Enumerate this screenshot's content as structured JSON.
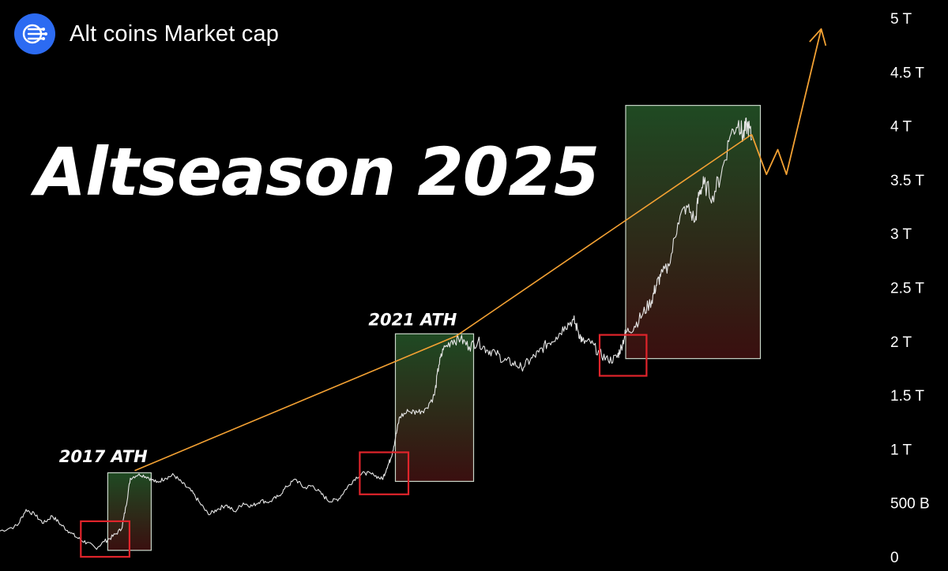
{
  "header": {
    "title": "Alt coins Market cap",
    "logo_icon": "circuit-logo-icon",
    "logo_color": "#2c6bf2"
  },
  "headline": "Altseason 2025",
  "chart_data": {
    "type": "line",
    "title": "Alt coins Market cap",
    "xlabel": "",
    "ylabel": "",
    "ylim": [
      0,
      5000
    ],
    "y_unit": "B",
    "y_ticks": [
      {
        "value": 0,
        "label": "0"
      },
      {
        "value": 500,
        "label": "500 B"
      },
      {
        "value": 1000,
        "label": "1 T"
      },
      {
        "value": 1500,
        "label": "1.5 T"
      },
      {
        "value": 2000,
        "label": "2 T"
      },
      {
        "value": 2500,
        "label": "2.5 T"
      },
      {
        "value": 3000,
        "label": "3 T"
      },
      {
        "value": 3500,
        "label": "3.5 T"
      },
      {
        "value": 4000,
        "label": "4 T"
      },
      {
        "value": 4500,
        "label": "4.5 T"
      },
      {
        "value": 5000,
        "label": "5 T"
      }
    ],
    "grid": false,
    "x_range": [
      0,
      100
    ],
    "series": [
      {
        "values": [
          [
            0,
            240
          ],
          [
            2,
            290
          ],
          [
            3,
            440
          ],
          [
            4,
            390
          ],
          [
            5,
            310
          ],
          [
            6,
            380
          ],
          [
            7,
            300
          ],
          [
            8,
            230
          ],
          [
            9,
            170
          ],
          [
            10,
            130
          ],
          [
            11,
            80
          ],
          [
            12,
            140
          ],
          [
            13,
            190
          ],
          [
            14,
            260
          ],
          [
            14.5,
            470
          ],
          [
            15,
            730
          ],
          [
            16,
            770
          ],
          [
            17,
            740
          ],
          [
            18,
            690
          ],
          [
            19,
            730
          ],
          [
            20,
            760
          ],
          [
            21,
            680
          ],
          [
            22,
            610
          ],
          [
            23,
            500
          ],
          [
            24,
            390
          ],
          [
            25,
            440
          ],
          [
            26,
            480
          ],
          [
            27,
            420
          ],
          [
            28,
            500
          ],
          [
            29,
            470
          ],
          [
            30,
            520
          ],
          [
            31,
            510
          ],
          [
            32,
            560
          ],
          [
            33,
            650
          ],
          [
            34,
            720
          ],
          [
            35,
            640
          ],
          [
            36,
            660
          ],
          [
            37,
            580
          ],
          [
            38,
            510
          ],
          [
            39,
            540
          ],
          [
            40,
            650
          ],
          [
            41,
            740
          ],
          [
            42,
            780
          ],
          [
            43,
            760
          ],
          [
            44,
            720
          ],
          [
            44.5,
            820
          ],
          [
            45,
            920
          ],
          [
            45.5,
            1100
          ],
          [
            46,
            1300
          ],
          [
            47,
            1350
          ],
          [
            48,
            1340
          ],
          [
            49,
            1380
          ],
          [
            50,
            1500
          ],
          [
            50.5,
            1780
          ],
          [
            51,
            1920
          ],
          [
            52,
            2010
          ],
          [
            53,
            2020
          ],
          [
            54,
            1950
          ],
          [
            55,
            2000
          ],
          [
            56,
            1920
          ],
          [
            57,
            1900
          ],
          [
            58,
            1820
          ],
          [
            59,
            1800
          ],
          [
            60,
            1760
          ],
          [
            61,
            1820
          ],
          [
            62,
            1900
          ],
          [
            63,
            1980
          ],
          [
            64,
            2040
          ],
          [
            65,
            2140
          ],
          [
            66,
            2200
          ],
          [
            66.5,
            2100
          ],
          [
            67,
            2000
          ],
          [
            68,
            1980
          ],
          [
            69,
            1890
          ],
          [
            70,
            1820
          ],
          [
            71,
            1850
          ],
          [
            71.5,
            1950
          ],
          [
            72,
            2080
          ],
          [
            73,
            2140
          ],
          [
            74,
            2260
          ],
          [
            75,
            2380
          ],
          [
            75.5,
            2520
          ],
          [
            76,
            2600
          ],
          [
            77,
            2700
          ],
          [
            78,
            3100
          ],
          [
            79,
            3260
          ],
          [
            80,
            3120
          ],
          [
            80.5,
            3400
          ],
          [
            81,
            3460
          ],
          [
            82,
            3350
          ],
          [
            83,
            3550
          ],
          [
            84,
            3900
          ],
          [
            85,
            4050
          ],
          [
            85.5,
            3900
          ],
          [
            86,
            4020
          ],
          [
            86.5,
            3880
          ]
        ]
      }
    ],
    "trend_line": [
      [
        15.5,
        800
      ],
      [
        52.5,
        2050
      ],
      [
        86.5,
        3920
      ]
    ],
    "projection": [
      [
        86.5,
        3920
      ],
      [
        88.2,
        3550
      ],
      [
        89.5,
        3780
      ],
      [
        90.5,
        3550
      ],
      [
        94.5,
        4900
      ]
    ],
    "red_boxes": [
      {
        "x0": 9.3,
        "x1": 14.9,
        "y0": 0,
        "y1": 330
      },
      {
        "x0": 41.4,
        "x1": 47.0,
        "y0": 580,
        "y1": 970
      },
      {
        "x0": 69.0,
        "x1": 74.4,
        "y0": 1680,
        "y1": 2060
      }
    ],
    "green_boxes": [
      {
        "x0": 12.4,
        "x1": 17.4,
        "y0": 60,
        "y1": 780
      },
      {
        "x0": 45.5,
        "x1": 54.5,
        "y0": 700,
        "y1": 2070
      },
      {
        "x0": 72.0,
        "x1": 87.5,
        "y0": 1840,
        "y1": 4190
      }
    ],
    "annotations": [
      {
        "text": "2017 ATH",
        "x": 6.8,
        "y": 880
      },
      {
        "text": "2021 ATH",
        "x": 42.4,
        "y": 2150
      }
    ],
    "colors": {
      "line": "#e6e6e6",
      "trend": "#f3a133",
      "red_box": "#e0242b",
      "green_box": "#1f4a23",
      "box_bottom": "#3a0f0f",
      "background": "#000000"
    }
  }
}
